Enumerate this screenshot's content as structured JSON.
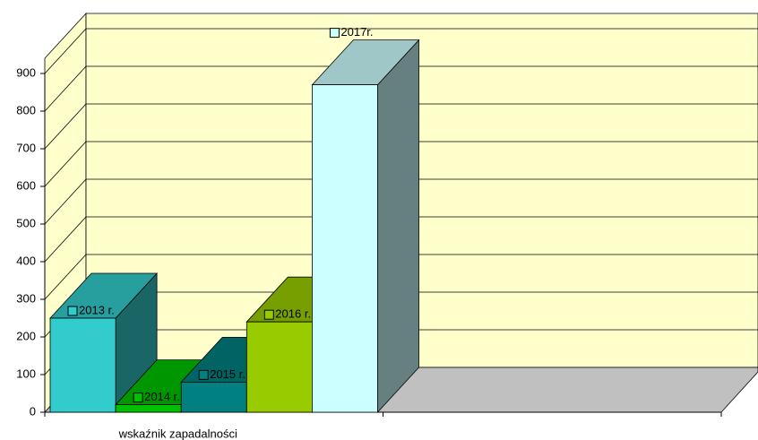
{
  "chart_data": {
    "type": "bar3d",
    "categories": [
      "wskaźnik zapadalności",
      null
    ],
    "series": [
      {
        "name": "2013 r.",
        "color": "#33cccc",
        "values": [
          250,
          null
        ]
      },
      {
        "name": "2014 r.",
        "color": "#00c000",
        "values": [
          20,
          null
        ]
      },
      {
        "name": "2015 r.",
        "color": "#008080",
        "values": [
          80,
          null
        ]
      },
      {
        "name": "2016 r.",
        "color": "#99cc00",
        "values": [
          240,
          null
        ]
      },
      {
        "name": "2017r.",
        "color": "#ccffff",
        "values": [
          870,
          null
        ]
      }
    ],
    "ylim": [
      0,
      900
    ],
    "yticks": [
      0,
      100,
      200,
      300,
      400,
      500,
      600,
      700,
      800,
      900
    ],
    "grid": true
  }
}
